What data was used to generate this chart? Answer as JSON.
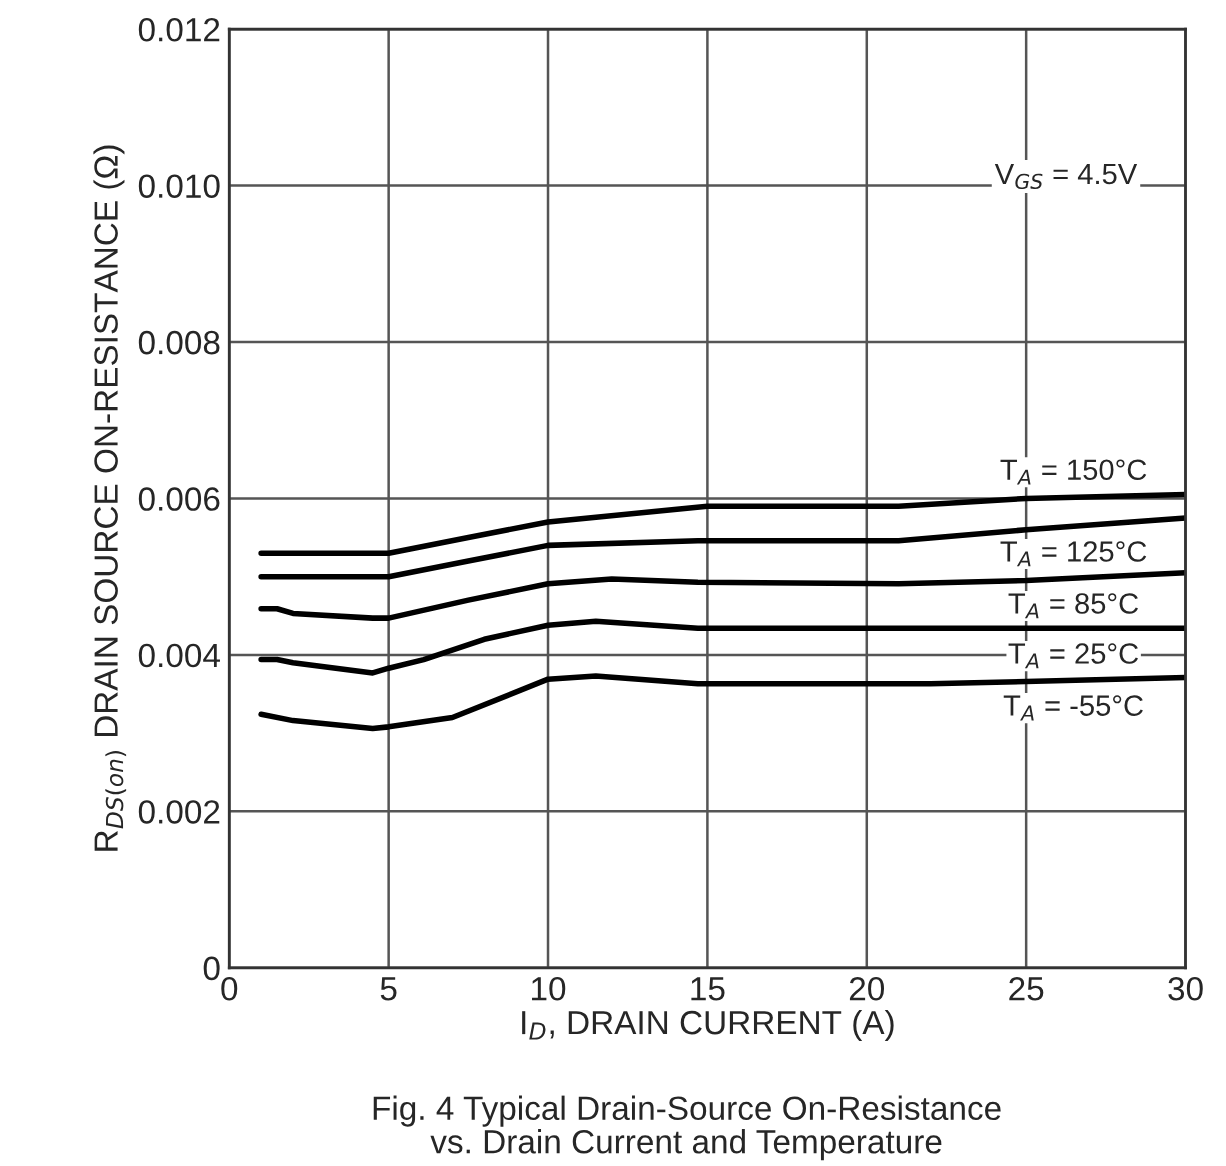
{
  "chart_data": {
    "type": "line",
    "xlabel": "I$_{D}$, DRAIN CURRENT (A)",
    "ylabel": "R$_{DS(on)}$ DRAIN SOURCE ON-RESISTANCE (Ω)",
    "xlim": [
      0,
      30
    ],
    "xticks": [
      0,
      5,
      10,
      15,
      20,
      25,
      30
    ],
    "ylim": [
      0,
      0.012
    ],
    "yticks": [
      0,
      {
        "value": 0.002,
        "label": "0.002"
      },
      {
        "value": 0.004,
        "label": "0.004"
      },
      {
        "value": 0.006,
        "label": "0.006"
      },
      {
        "value": 0.008,
        "label": "0.008"
      },
      {
        "value": 0.01,
        "label": "0.010"
      },
      {
        "value": 0.012,
        "label": "0.012"
      }
    ],
    "grid": true,
    "marker": "none",
    "line_style": "solid",
    "series": [
      {
        "name": "T$_{A}$ = 150°C",
        "color": "#000000",
        "x": [
          1,
          5,
          7.5,
          10,
          15,
          21,
          25,
          30
        ],
        "values": [
          0.0053,
          0.0053,
          0.0055,
          0.0057,
          0.0059,
          0.0059,
          0.006,
          0.00605
        ]
      },
      {
        "name": "T$_{A}$ = 125°C",
        "color": "#000000",
        "x": [
          1,
          5,
          7.5,
          10,
          14.7,
          21,
          25,
          30
        ],
        "values": [
          0.005,
          0.005,
          0.0052,
          0.0054,
          0.00546,
          0.00546,
          0.0056,
          0.00575
        ]
      },
      {
        "name": "T$_{A}$ = 85°C",
        "color": "#000000",
        "x": [
          1,
          1.5,
          2,
          4.5,
          5,
          7.5,
          10,
          12,
          14.7,
          21,
          25,
          30
        ],
        "values": [
          0.00459,
          0.00459,
          0.00453,
          0.00447,
          0.00447,
          0.0047,
          0.00491,
          0.00497,
          0.00493,
          0.00491,
          0.00495,
          0.00505
        ]
      },
      {
        "name": "T$_{A}$ = 25°C",
        "color": "#000000",
        "x": [
          1,
          1.5,
          2,
          4.5,
          5,
          6.1,
          8,
          10,
          11.5,
          14.7,
          30
        ],
        "values": [
          0.00394,
          0.00394,
          0.0039,
          0.00377,
          0.00383,
          0.00394,
          0.0042,
          0.00438,
          0.00443,
          0.00434,
          0.00434
        ]
      },
      {
        "name": "T$_{A}$ = -55°C",
        "color": "#000000",
        "x": [
          1,
          2,
          4.5,
          5,
          7,
          10,
          11.5,
          14.7,
          22,
          30
        ],
        "values": [
          0.00324,
          0.00316,
          0.00306,
          0.00308,
          0.0032,
          0.00369,
          0.00373,
          0.00363,
          0.00363,
          0.00371
        ]
      }
    ],
    "annotations": [
      "V$_{GS}$ = 4.5V",
      "Fig. 4 Typical Drain-Source On-Resistance\nvs. Drain Current and Temperature"
    ]
  }
}
